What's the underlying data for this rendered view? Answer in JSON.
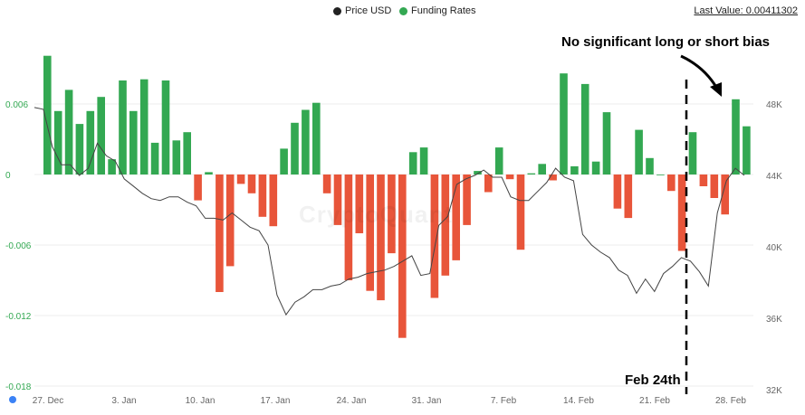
{
  "legend": {
    "price_label": "Price USD",
    "funding_label": "Funding Rates"
  },
  "last_value": "Last Value: 0.00411302",
  "annotations": {
    "bias_text": "No significant long or short bias",
    "date_text": "Feb 24th"
  },
  "watermark": "CryptoQuant",
  "colors": {
    "positive": "#33a852",
    "negative": "#e8553a",
    "price_line": "#444444",
    "funding_axis": "#33a852",
    "price_axis": "#666666"
  },
  "chart_data": {
    "type": "bar+line",
    "x_tick_labels": [
      "27. Dec",
      "3. Jan",
      "10. Jan",
      "17. Jan",
      "24. Jan",
      "31. Jan",
      "7. Feb",
      "14. Feb",
      "21. Feb",
      "28. Feb"
    ],
    "left_axis": {
      "ticks": [
        "0.006",
        "0",
        "-0.006",
        "-0.012",
        "-0.018"
      ],
      "range": [
        -0.018,
        0.0102
      ]
    },
    "right_axis": {
      "ticks": [
        "48K",
        "44K",
        "40K",
        "36K",
        "32K"
      ],
      "range": [
        32000,
        49000
      ]
    },
    "series": [
      {
        "name": "Funding Rates",
        "values": [
          0.0101,
          0.0054,
          0.0072,
          0.0043,
          0.0054,
          0.0066,
          0.0013,
          0.008,
          0.0054,
          0.0081,
          0.0027,
          0.008,
          0.0029,
          0.0036,
          -0.0022,
          0.0002,
          -0.01,
          -0.0078,
          -0.0008,
          -0.0016,
          -0.0036,
          -0.0044,
          0.0022,
          0.0044,
          0.0055,
          0.0061,
          -0.0016,
          -0.0043,
          -0.009,
          -0.005,
          -0.0099,
          -0.0107,
          -0.0067,
          -0.0139,
          0.0019,
          0.0023,
          -0.0105,
          -0.0086,
          -0.0073,
          -0.0043,
          0.0003,
          -0.0015,
          0.0023,
          -0.0004,
          -0.0064,
          0.0001,
          0.0009,
          -0.0005,
          0.0086,
          0.0007,
          0.0077,
          0.0011,
          0.0053,
          -0.0029,
          -0.0037,
          0.0038,
          0.0014,
          0.0,
          -0.0014,
          -0.0065,
          0.0036,
          -0.001,
          -0.002,
          -0.0034,
          0.0064,
          0.0041
        ]
      },
      {
        "name": "Price USD",
        "values": [
          47800,
          47700,
          45600,
          44600,
          44600,
          44000,
          44400,
          45800,
          45100,
          44800,
          43800,
          43400,
          43000,
          42700,
          42600,
          42800,
          42800,
          42500,
          42300,
          41600,
          41600,
          41500,
          41900,
          41500,
          41100,
          40900,
          40100,
          37300,
          36200,
          36900,
          37200,
          37600,
          37600,
          37800,
          37900,
          38200,
          38300,
          38500,
          38600,
          38700,
          38900,
          39200,
          39500,
          38400,
          38500,
          41200,
          41700,
          43500,
          43800,
          44000,
          44300,
          43900,
          43900,
          42800,
          42600,
          42600,
          43100,
          43600,
          44400,
          43900,
          43700,
          40700,
          40100,
          39700,
          39400,
          38700,
          38400,
          37400,
          38200,
          37500,
          38500,
          38900,
          39400,
          39200,
          38600,
          37800,
          41900,
          43700,
          44400,
          44000
        ]
      }
    ]
  }
}
